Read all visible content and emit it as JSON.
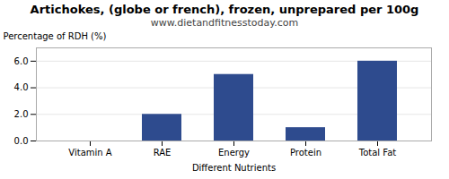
{
  "chart_data": {
    "type": "bar",
    "title": "Artichokes, (globe or french), frozen, unprepared per 100g",
    "subtitle": "www.dietandfitnesstoday.com",
    "xlabel": "Different Nutrients",
    "ylabel": "Percentage of RDH (%)",
    "categories": [
      "Vitamin A",
      "RAE",
      "Energy",
      "Protein",
      "Total Fat"
    ],
    "values": [
      0,
      2,
      5,
      1,
      6
    ],
    "color": "#2e4b8e",
    "ylim": [
      0,
      7
    ],
    "yticks": [
      0,
      2,
      4,
      6
    ],
    "grid": true
  }
}
